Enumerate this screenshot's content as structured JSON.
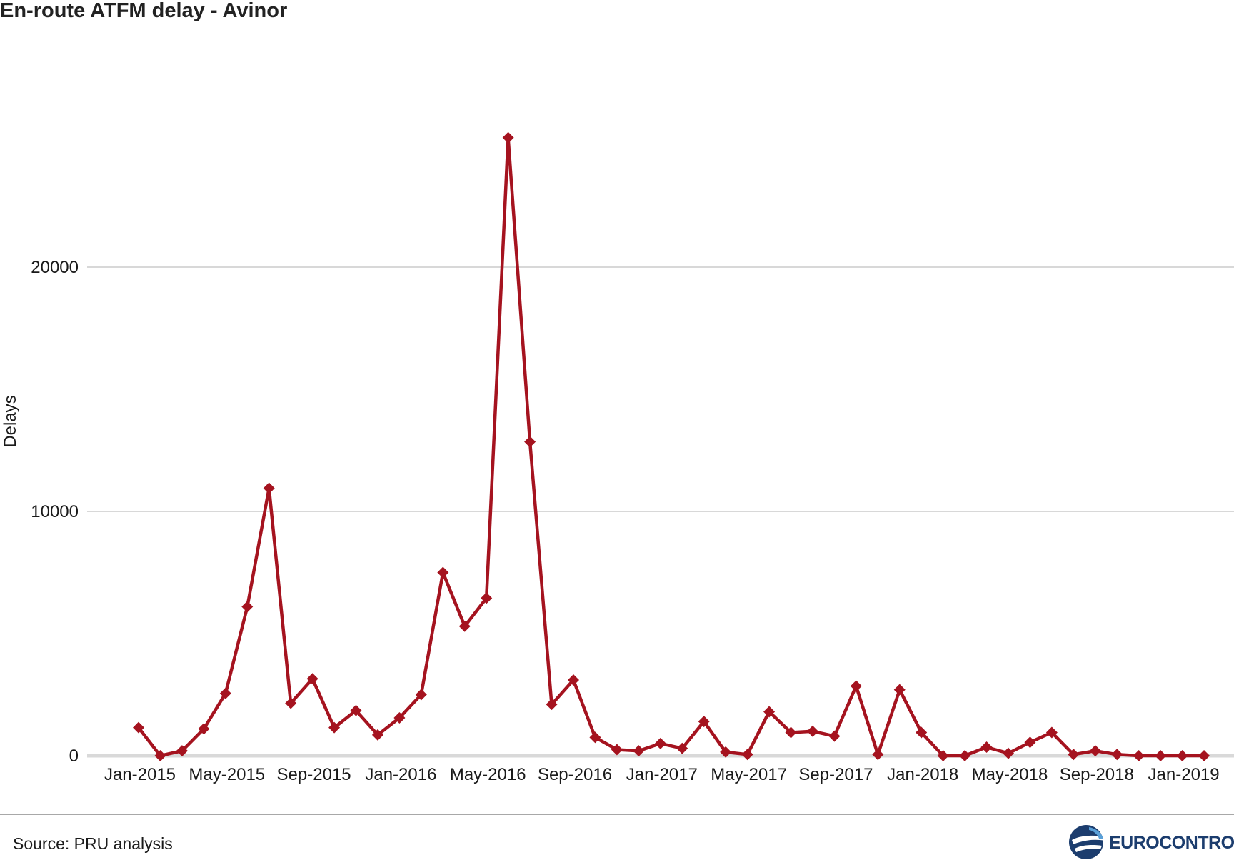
{
  "title": "En-route ATFM delay - Avinor",
  "source": "Source: PRU analysis",
  "logo_text": "EUROCONTROL",
  "colors": {
    "line": "#a5131f",
    "grid": "#cccccc",
    "baseline": "#d9d9d9",
    "logo": "#1c3d6e"
  },
  "chart_data": {
    "type": "line",
    "ylabel": "Delays",
    "xlabel": "",
    "ylim": [
      0,
      25000
    ],
    "yticks": [
      0,
      10000,
      20000
    ],
    "xtick_labels": [
      "Jan-2015",
      "May-2015",
      "Sep-2015",
      "Jan-2016",
      "May-2016",
      "Sep-2016",
      "Jan-2017",
      "May-2017",
      "Sep-2017",
      "Jan-2018",
      "May-2018",
      "Sep-2018",
      "Jan-2019"
    ],
    "x": [
      "Jan-2015",
      "Feb-2015",
      "Mar-2015",
      "Apr-2015",
      "May-2015",
      "Jun-2015",
      "Jul-2015",
      "Aug-2015",
      "Sep-2015",
      "Oct-2015",
      "Nov-2015",
      "Dec-2015",
      "Jan-2016",
      "Feb-2016",
      "Mar-2016",
      "Apr-2016",
      "May-2016",
      "Jun-2016",
      "Jul-2016",
      "Aug-2016",
      "Sep-2016",
      "Oct-2016",
      "Nov-2016",
      "Dec-2016",
      "Jan-2017",
      "Feb-2017",
      "Mar-2017",
      "Apr-2017",
      "May-2017",
      "Jun-2017",
      "Jul-2017",
      "Aug-2017",
      "Sep-2017",
      "Oct-2017",
      "Nov-2017",
      "Dec-2017",
      "Jan-2018",
      "Feb-2018",
      "Mar-2018",
      "Apr-2018",
      "May-2018",
      "Jun-2018",
      "Jul-2018",
      "Aug-2018",
      "Sep-2018",
      "Oct-2018",
      "Nov-2018",
      "Dec-2018",
      "Jan-2019",
      "Feb-2019"
    ],
    "series": [
      {
        "values": [
          1150,
          0,
          200,
          1100,
          2550,
          6100,
          10950,
          2150,
          3150,
          1150,
          1850,
          850,
          1550,
          2500,
          7500,
          5300,
          6450,
          25300,
          12850,
          2100,
          3100,
          750,
          250,
          200,
          500,
          300,
          1400,
          150,
          50,
          1800,
          950,
          1000,
          800,
          2850,
          50,
          2700,
          950,
          0,
          0,
          350,
          100,
          550,
          950,
          50,
          200,
          50,
          0,
          0,
          0,
          0
        ]
      }
    ],
    "grid": "horizontal",
    "legend": "none"
  }
}
